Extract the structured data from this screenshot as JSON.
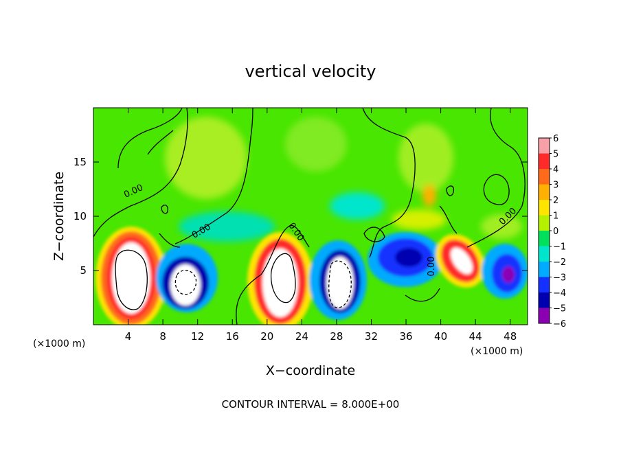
{
  "chart_data": {
    "type": "heatmap",
    "title": "vertical velocity",
    "xlabel": "X−coordinate",
    "ylabel": "Z−coordinate",
    "x_unit_label": "(×1000 m)",
    "y_unit_label": "(×1000 m)",
    "xlim": [
      0,
      50
    ],
    "ylim": [
      0,
      20
    ],
    "x_ticks": [
      4,
      8,
      12,
      16,
      20,
      24,
      28,
      32,
      36,
      40,
      44,
      48
    ],
    "y_ticks": [
      5,
      10,
      15
    ],
    "colorbar": {
      "levels": [
        6,
        5,
        4,
        3,
        2,
        1,
        0,
        -1,
        -2,
        -3,
        -4,
        -5,
        -6
      ],
      "tick_labels": [
        "6",
        "5",
        "4",
        "3",
        "2",
        "1",
        "0",
        "−1",
        "−2",
        "−3",
        "−4",
        "−5",
        "−6"
      ],
      "colors": [
        "#f7a0a8",
        "#ff2a2a",
        "#ff6a1a",
        "#ffb000",
        "#ffe400",
        "#b4f000",
        "#48e600",
        "#00e05a",
        "#00e6cc",
        "#00aaff",
        "#1430ff",
        "#0000b0",
        "#8c00b4"
      ]
    },
    "contour_labels": [
      "0.00",
      "0.00",
      "0.00",
      "0.00",
      "0.00"
    ],
    "contour_interval_text": "CONTOUR INTERVAL = 8.000E+00",
    "features": [
      {
        "x": 4.5,
        "z": 4.5,
        "w": 12,
        "kind": "updraft"
      },
      {
        "x": 10.5,
        "z": 4.0,
        "w": -10,
        "kind": "downdraft"
      },
      {
        "x": 21.5,
        "z": 4.5,
        "w": 11,
        "kind": "updraft"
      },
      {
        "x": 28.0,
        "z": 4.0,
        "w": -10,
        "kind": "downdraft"
      },
      {
        "x": 35.5,
        "z": 6.0,
        "w": -4.5,
        "kind": "downdraft"
      },
      {
        "x": 41.5,
        "z": 6.0,
        "w": 6,
        "kind": "updraft"
      },
      {
        "x": 47.5,
        "z": 5.0,
        "w": -6,
        "kind": "downdraft"
      }
    ]
  }
}
